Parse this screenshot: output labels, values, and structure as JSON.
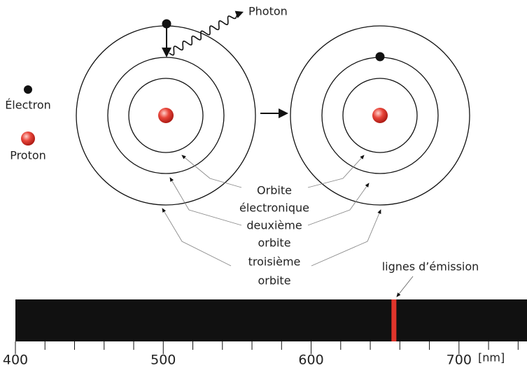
{
  "legend": {
    "electron": "Électron",
    "proton": "Proton"
  },
  "photon_label": "Photon",
  "orbit_label_lines": [
    "Orbite",
    "électronique",
    "deuxième",
    "orbite",
    "troisième",
    "orbite"
  ],
  "spectrum": {
    "label": "lignes d’émission",
    "unit": "[nm]",
    "xlim": [
      400,
      746
    ],
    "xticks": [
      400,
      500,
      600,
      700
    ],
    "minor_xticks": [
      420,
      440,
      460,
      480,
      520,
      540,
      560,
      580,
      620,
      640,
      660,
      680,
      720,
      740
    ],
    "emission_lines": [
      656
    ],
    "line_color": "#e0352b"
  }
}
